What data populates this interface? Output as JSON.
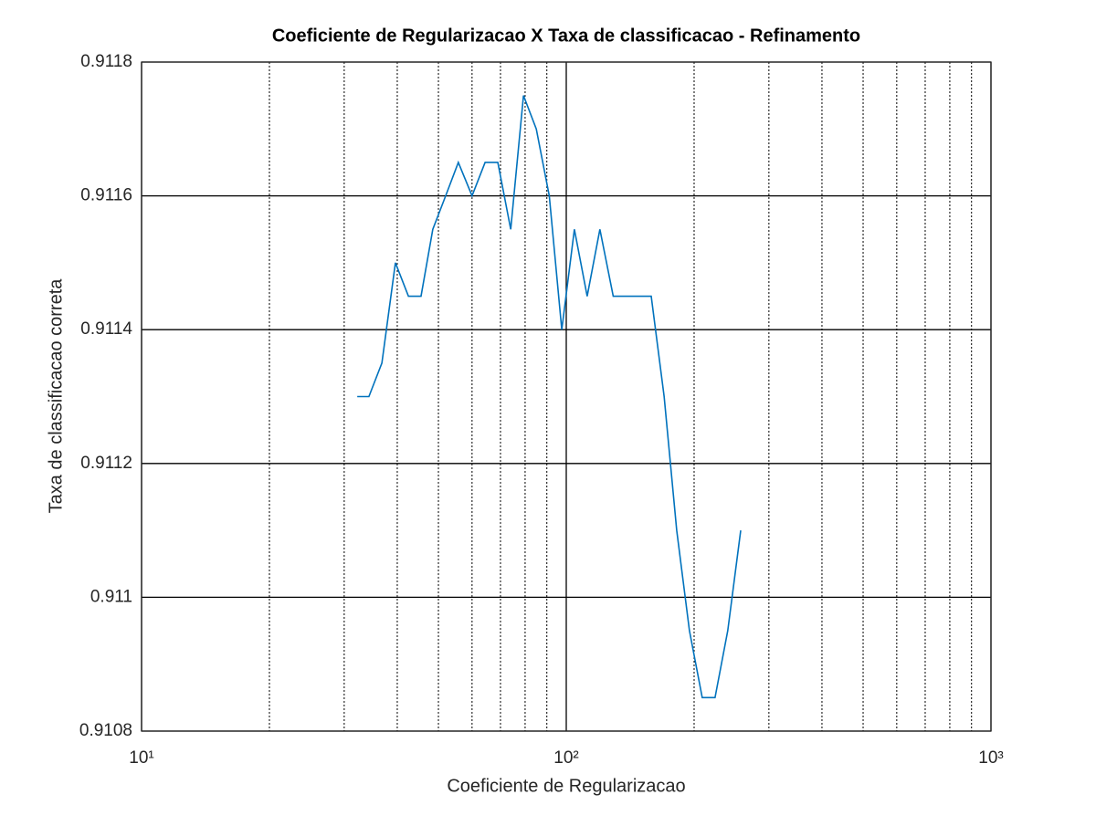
{
  "chart_data": {
    "type": "line",
    "title": "Coeficiente de Regularizacao X Taxa de classificacao - Refinamento",
    "xlabel": "Coeficiente de Regularizacao",
    "ylabel": "Taxa de classificacao correta",
    "x": [
      32.2,
      34.3,
      36.8,
      39.6,
      42.5,
      45.5,
      48.5,
      52,
      55.7,
      60,
      64.4,
      69,
      74,
      79.3,
      85,
      91.2,
      97.6,
      104.5,
      112,
      120,
      129,
      138,
      148,
      158.5,
      170,
      182,
      195,
      209,
      224,
      240,
      257.5
    ],
    "values": [
      0.9113,
      0.9113,
      0.91135,
      0.9115,
      0.91145,
      0.91145,
      0.91155,
      0.9116,
      0.91165,
      0.9116,
      0.91165,
      0.91165,
      0.91155,
      0.91175,
      0.9117,
      0.9116,
      0.9114,
      0.91155,
      0.91145,
      0.91155,
      0.91145,
      0.91145,
      0.91145,
      0.91145,
      0.9113,
      0.9111,
      0.91095,
      0.91085,
      0.91085,
      0.91095,
      0.9111
    ],
    "color": "#0072bd",
    "xscale": "log",
    "xlim": [
      10,
      1000
    ],
    "xticks": [
      {
        "value": 10,
        "label": "10¹"
      },
      {
        "value": 100,
        "label": "10²"
      },
      {
        "value": 1000,
        "label": "10³"
      }
    ],
    "xminorticks": [
      20,
      30,
      40,
      50,
      60,
      70,
      80,
      90,
      200,
      300,
      400,
      500,
      600,
      700,
      800,
      900
    ],
    "ylim": [
      0.9108,
      0.9118
    ],
    "yticks": [
      0.9108,
      0.911,
      0.9112,
      0.9114,
      0.9116,
      0.9118
    ],
    "grid": true
  }
}
